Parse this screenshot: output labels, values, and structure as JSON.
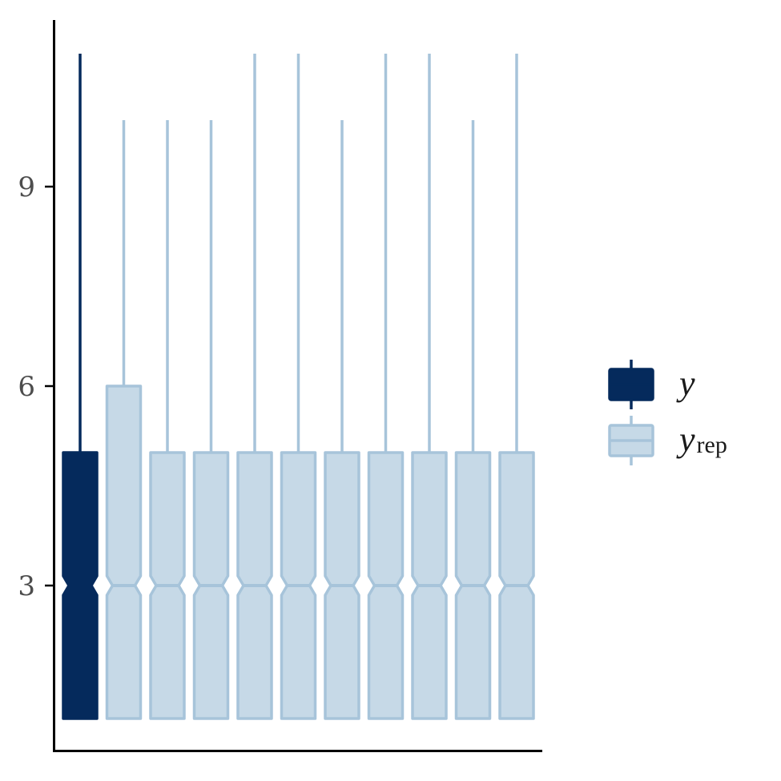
{
  "chart_data": {
    "type": "boxplot",
    "title": "",
    "xlabel": "",
    "ylabel": "",
    "ylim": [
      0.8,
      11.8
    ],
    "yticks": [
      3,
      6,
      9
    ],
    "yticklabels": [
      "3",
      "6",
      "9"
    ],
    "grid": false,
    "legend_position": "right",
    "colors": {
      "y": "#052a5c",
      "y_rep_fill": "#c6d9e7",
      "y_rep_line": "#a7c4da",
      "axis": "#000000"
    },
    "legend": [
      {
        "key": "y",
        "label": "y",
        "subscript": ""
      },
      {
        "key": "y_rep",
        "label": "y",
        "subscript": "rep"
      }
    ],
    "series": [
      {
        "key": "y",
        "whisker_low": 1,
        "q1": 1,
        "median": 3,
        "q3": 5,
        "whisker_high": 11
      },
      {
        "key": "y_rep",
        "whisker_low": 1,
        "q1": 1,
        "median": 3,
        "q3": 6,
        "whisker_high": 10
      },
      {
        "key": "y_rep",
        "whisker_low": 1,
        "q1": 1,
        "median": 3,
        "q3": 5,
        "whisker_high": 10
      },
      {
        "key": "y_rep",
        "whisker_low": 1,
        "q1": 1,
        "median": 3,
        "q3": 5,
        "whisker_high": 10
      },
      {
        "key": "y_rep",
        "whisker_low": 1,
        "q1": 1,
        "median": 3,
        "q3": 5,
        "whisker_high": 11
      },
      {
        "key": "y_rep",
        "whisker_low": 1,
        "q1": 1,
        "median": 3,
        "q3": 5,
        "whisker_high": 11
      },
      {
        "key": "y_rep",
        "whisker_low": 1,
        "q1": 1,
        "median": 3,
        "q3": 5,
        "whisker_high": 10
      },
      {
        "key": "y_rep",
        "whisker_low": 1,
        "q1": 1,
        "median": 3,
        "q3": 5,
        "whisker_high": 11
      },
      {
        "key": "y_rep",
        "whisker_low": 1,
        "q1": 1,
        "median": 3,
        "q3": 5,
        "whisker_high": 11
      },
      {
        "key": "y_rep",
        "whisker_low": 1,
        "q1": 1,
        "median": 3,
        "q3": 5,
        "whisker_high": 10
      },
      {
        "key": "y_rep",
        "whisker_low": 1,
        "q1": 1,
        "median": 3,
        "q3": 5,
        "whisker_high": 11
      }
    ]
  }
}
